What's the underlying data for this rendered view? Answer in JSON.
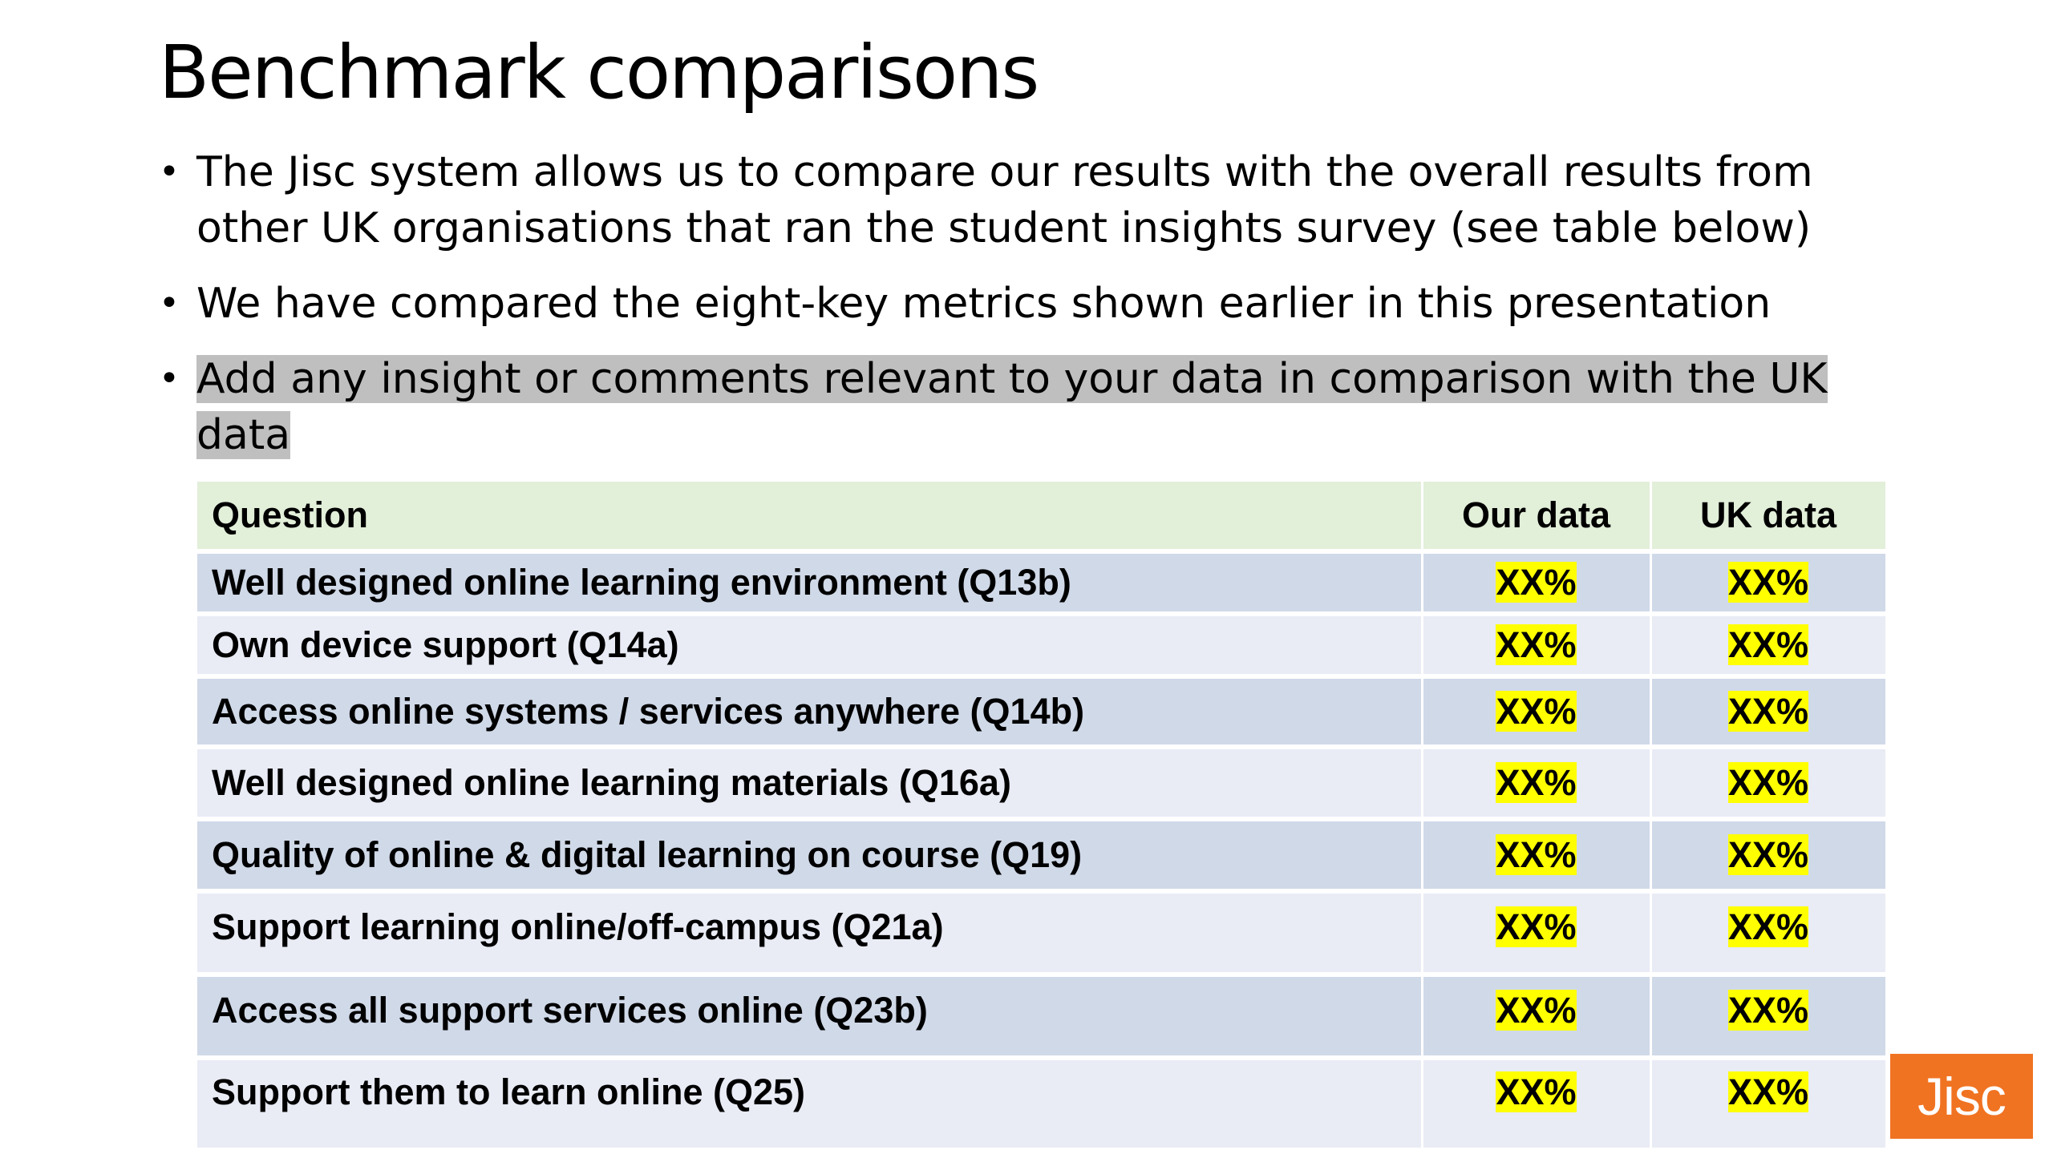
{
  "slide": {
    "title": "Benchmark comparisons",
    "bullets": [
      "The Jisc system allows us to compare our results with the overall results from other UK organisations that ran the student insights survey (see table below)",
      "We have compared the eight-key metrics shown earlier in this presentation",
      "Add any insight or comments relevant to your data in comparison with the UK data"
    ],
    "bullet_glyph": "•"
  },
  "table": {
    "headers": {
      "question": "Question",
      "our": "Our data",
      "uk": "UK data"
    },
    "rows": [
      {
        "question": "Well designed online learning environment (Q13b)",
        "our": "XX%",
        "uk": "XX%"
      },
      {
        "question": "Own device support (Q14a)",
        "our": "XX%",
        "uk": "XX%"
      },
      {
        "question": "Access online systems / services anywhere (Q14b)",
        "our": "XX%",
        "uk": "XX%"
      },
      {
        "question": "Well designed online learning materials (Q16a)",
        "our": "XX%",
        "uk": "XX%"
      },
      {
        "question": "Quality of online & digital learning on course (Q19)",
        "our": "XX%",
        "uk": "XX%"
      },
      {
        "question": "Support learning online/off-campus (Q21a)",
        "our": "XX%",
        "uk": "XX%"
      },
      {
        "question": "Access all support services online (Q23b)",
        "our": "XX%",
        "uk": "XX%"
      },
      {
        "question": "Support them to learn online (Q25)",
        "our": "XX%",
        "uk": "XX%"
      }
    ]
  },
  "logo": {
    "text": "Jisc",
    "color": "#f07322"
  },
  "colors": {
    "header_bg": "#e2efd9",
    "row_dark": "#d0d9e8",
    "row_light": "#e9ebf5",
    "placeholder_highlight": "#ffff00",
    "text_highlight": "#bfbfbf"
  }
}
